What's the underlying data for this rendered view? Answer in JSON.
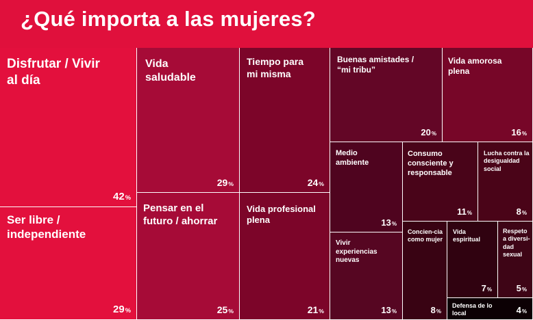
{
  "title": "¿Qué importa a las mujeres?",
  "colors": {
    "background": "#e0103c",
    "text": "#ffffff"
  },
  "chart_data": {
    "type": "treemap",
    "title": "¿Qué importa a las mujeres?",
    "unit": "%",
    "items": [
      {
        "label": "Disfrutar / Vivir al día",
        "value": 42,
        "color": "#e3103d"
      },
      {
        "label": "Ser libre / independiente",
        "value": 29,
        "color": "#e3103d"
      },
      {
        "label": "Vida saludable",
        "value": 29,
        "color": "#a60b37"
      },
      {
        "label": "Pensar en el futuro / ahorrar",
        "value": 25,
        "color": "#a60b37"
      },
      {
        "label": "Tiempo para mi misma",
        "value": 24,
        "color": "#7c0529"
      },
      {
        "label": "Vida profesional plena",
        "value": 21,
        "color": "#7c0529"
      },
      {
        "label": "Buenas amistades / “mi tribu”",
        "value": 20,
        "color": "#630626"
      },
      {
        "label": "Vida amorosa plena",
        "value": 16,
        "color": "#770628"
      },
      {
        "label": "Medio ambiente",
        "value": 13,
        "color": "#4f041f"
      },
      {
        "label": "Vivir experiencias nuevas",
        "value": 13,
        "color": "#560622"
      },
      {
        "label": "Consumo consciente y responsable",
        "value": 11,
        "color": "#490419"
      },
      {
        "label": "Lucha contra la desigualdad social",
        "value": 8,
        "color": "#4a0418"
      },
      {
        "label": "Concien-cia como mujer",
        "value": 8,
        "color": "#390313"
      },
      {
        "label": "Vida espiritual",
        "value": 7,
        "color": "#300210"
      },
      {
        "label": "Respeto a diversi-dad sexual",
        "value": 5,
        "color": "#3e0516"
      },
      {
        "label": "Defensa de lo local",
        "value": 4,
        "color": "#0c0004"
      }
    ]
  }
}
